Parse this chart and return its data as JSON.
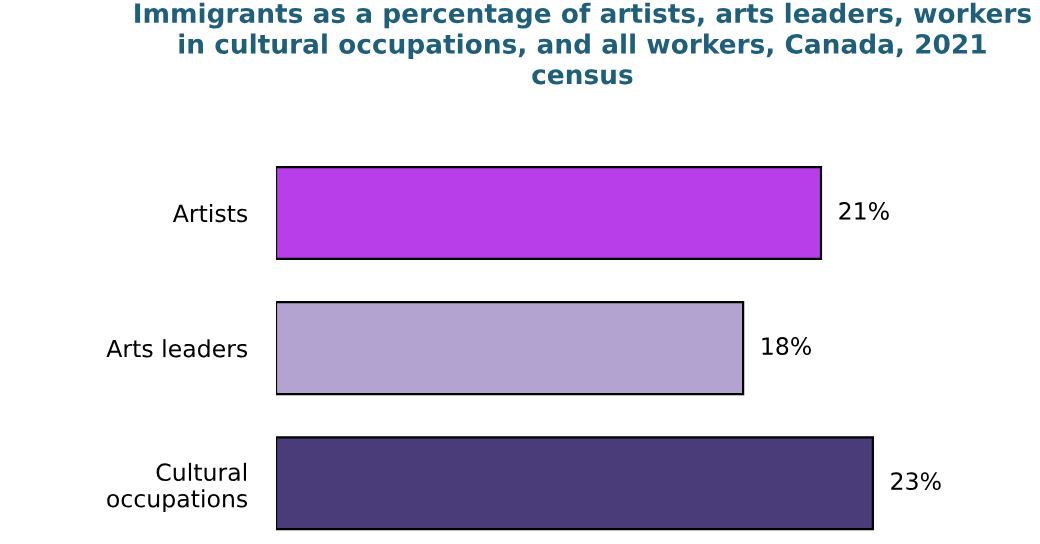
{
  "chart_data": {
    "type": "bar",
    "orientation": "horizontal",
    "title": "Immigrants as a percentage of artists, arts leaders, workers in cultural occupations, and all workers, Canada, 2021 census",
    "categories": [
      "Artists",
      "Arts leaders",
      "Cultural\noccupations"
    ],
    "values": [
      21,
      18,
      23
    ],
    "colors": [
      "#b73ee8",
      "#b3a3d1",
      "#4a3c78"
    ],
    "value_labels": [
      "21%",
      "18%",
      "23%"
    ],
    "grid": false,
    "legend": false
  }
}
